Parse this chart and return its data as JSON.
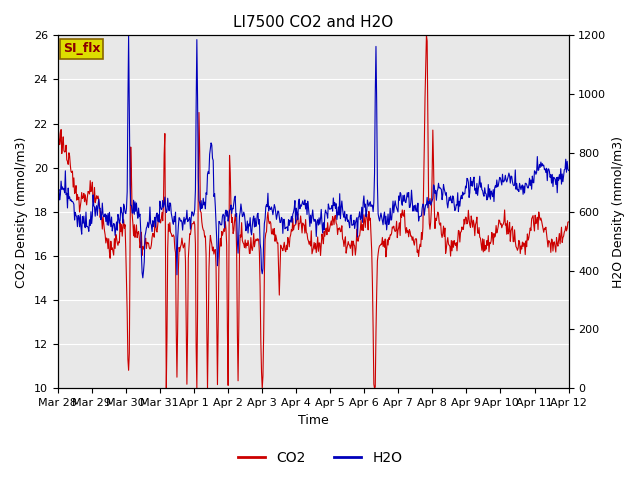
{
  "title": "LI7500 CO2 and H2O",
  "xlabel": "Time",
  "ylabel_left": "CO2 Density (mmol/m3)",
  "ylabel_right": "H2O Density (mmol/m3)",
  "co2_color": "#CC0000",
  "h2o_color": "#0000BB",
  "ylim_left": [
    10,
    26
  ],
  "ylim_right": [
    0,
    1200
  ],
  "background_color": "#E8E8E8",
  "legend_labels": [
    "CO2",
    "H2O"
  ],
  "annotation_text": "SI_flx",
  "annotation_bg": "#DDDD00",
  "annotation_border": "#886600",
  "x_tick_labels": [
    "Mar 28",
    "Mar 29",
    "Mar 30",
    "Mar 31",
    "Apr 1",
    "Apr 2",
    "Apr 3",
    "Apr 4",
    "Apr 5",
    "Apr 6",
    "Apr 7",
    "Apr 8",
    "Apr 9",
    "Apr 10",
    "Apr 11",
    "Apr 12"
  ],
  "title_fontsize": 11,
  "axis_label_fontsize": 9,
  "tick_fontsize": 8,
  "legend_fontsize": 10
}
